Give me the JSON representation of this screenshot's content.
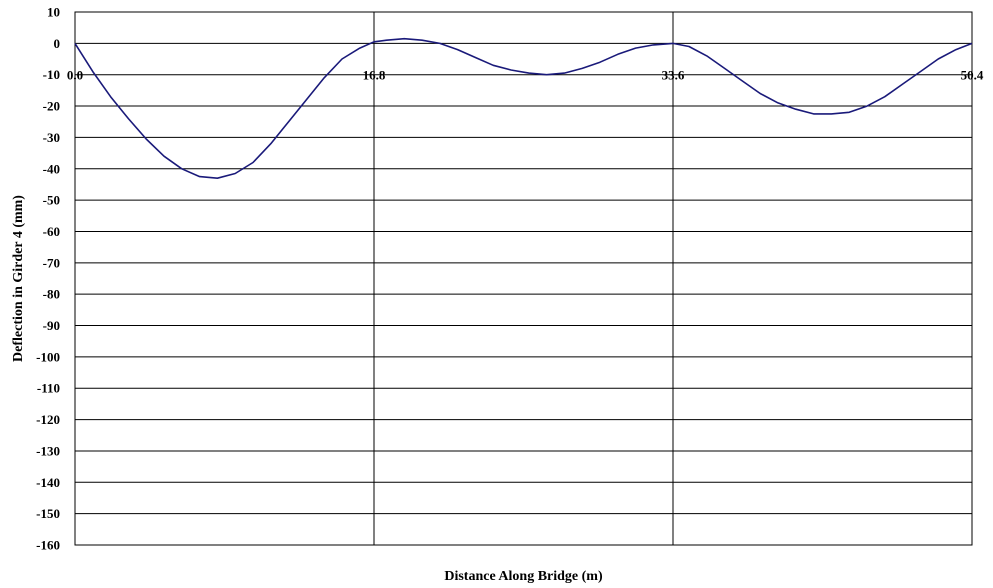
{
  "chart_data": {
    "type": "line",
    "title": "",
    "xlabel": "Distance Along Bridge (m)",
    "ylabel": "Deflection in Girder 4 (mm)",
    "xlim": [
      0,
      50.4
    ],
    "ylim": [
      -160,
      10
    ],
    "yticks": [
      10,
      0,
      -10,
      -20,
      -30,
      -40,
      -50,
      -60,
      -70,
      -80,
      -90,
      -100,
      -110,
      -120,
      -130,
      -140,
      -150,
      -160
    ],
    "xticks": [
      0,
      16.8,
      33.6,
      50.4
    ],
    "xtick_labels": [
      "0.0",
      "16.8",
      "33.6",
      "50.4"
    ],
    "xtick_label_y": -10,
    "grid": {
      "horizontal": true,
      "vertical": true
    },
    "legend": "none",
    "series": [
      {
        "color": "#1a1a7a",
        "x": [
          0,
          1,
          2,
          3,
          4,
          5,
          6,
          7,
          8,
          9,
          10,
          11,
          12,
          13,
          14,
          15,
          16,
          16.8,
          17.5,
          18.5,
          19.5,
          20.5,
          21.5,
          22.5,
          23.5,
          24.5,
          25.5,
          26.5,
          27.5,
          28.5,
          29.5,
          30.5,
          31.5,
          32.5,
          33.6,
          34.5,
          35.5,
          36.5,
          37.5,
          38.5,
          39.5,
          40.5,
          41.5,
          42.5,
          43.5,
          44.5,
          45.5,
          46.5,
          47.5,
          48.5,
          49.5,
          50.4
        ],
        "y": [
          0,
          -9,
          -17,
          -24,
          -30.5,
          -36,
          -40,
          -42.5,
          -43,
          -41.5,
          -38,
          -32,
          -25,
          -18,
          -11,
          -5,
          -1.5,
          0.5,
          1,
          1.5,
          1,
          0,
          -2,
          -4.5,
          -7,
          -8.5,
          -9.5,
          -10,
          -9.5,
          -8,
          -6,
          -3.5,
          -1.5,
          -0.5,
          0,
          -1,
          -4,
          -8,
          -12,
          -16,
          -19,
          -21,
          -22.5,
          -22.5,
          -22,
          -20,
          -17,
          -13,
          -9,
          -5,
          -2,
          0
        ]
      }
    ]
  }
}
